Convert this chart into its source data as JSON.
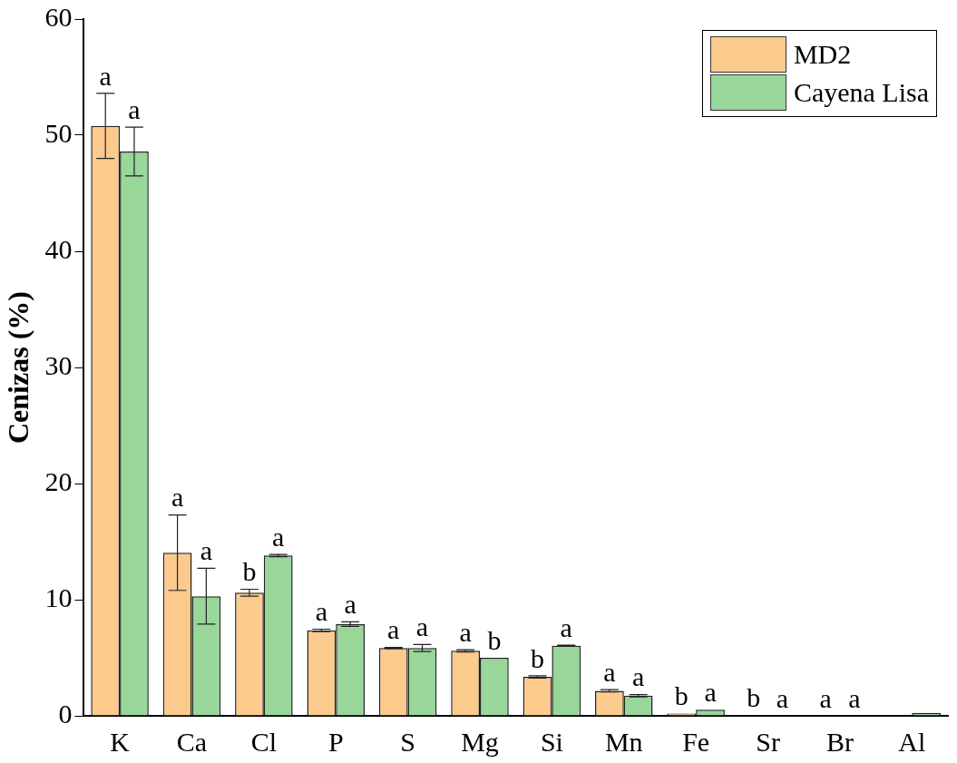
{
  "chart_data": {
    "type": "bar",
    "ylabel": "Cenizas (%)",
    "categories": [
      "K",
      "Ca",
      "Cl",
      "P",
      "S",
      "Mg",
      "Si",
      "Mn",
      "Fe",
      "Sr",
      "Br",
      "Al"
    ],
    "series": [
      {
        "name": "MD2",
        "color": "#fdca8e",
        "values": [
          50.8,
          14.05,
          10.6,
          7.36,
          5.84,
          5.6,
          3.35,
          2.15,
          0.2,
          0.05,
          0.02,
          null
        ],
        "errors": [
          2.8,
          3.25,
          0.3,
          0.1,
          0.05,
          0.1,
          0.1,
          0.1,
          null,
          null,
          null,
          null
        ],
        "value_labels": [
          "a",
          "a",
          "b",
          "a",
          "a",
          "a",
          "b",
          "a",
          "b",
          "b",
          "a",
          null
        ]
      },
      {
        "name": "Cayena Lisa",
        "color": "#98d69a",
        "values": [
          48.6,
          10.3,
          13.8,
          7.9,
          5.84,
          5.0,
          6.03,
          1.73,
          0.53,
          0.02,
          0.02,
          0.25
        ],
        "errors": [
          2.1,
          2.4,
          0.1,
          0.2,
          0.3,
          null,
          0.05,
          0.1,
          null,
          null,
          null,
          null
        ],
        "value_labels": [
          "a",
          "a",
          "a",
          "a",
          "a",
          "b",
          "a",
          "a",
          "a",
          "a",
          "a",
          null
        ]
      }
    ],
    "ylim": [
      0,
      60
    ],
    "yticks": [
      0,
      10,
      20,
      30,
      40,
      50,
      60
    ],
    "grid": false,
    "legend": "top right"
  }
}
